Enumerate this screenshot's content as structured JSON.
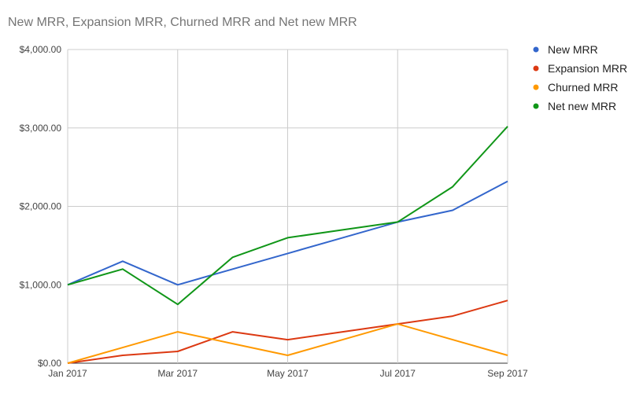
{
  "chart_data": {
    "type": "line",
    "title": "New MRR, Expansion MRR, Churned MRR and Net new MRR",
    "x": [
      "Jan 2017",
      "Feb 2017",
      "Mar 2017",
      "Apr 2017",
      "May 2017",
      "Jun 2017",
      "Jul 2017",
      "Aug 2017",
      "Sep 2017"
    ],
    "x_tick_labels": [
      "Jan 2017",
      "Mar 2017",
      "May 2017",
      "Jul 2017",
      "Sep 2017"
    ],
    "y_tick_labels": [
      "$0.00",
      "$1,000.00",
      "$2,000.00",
      "$3,000.00",
      "$4,000.00"
    ],
    "ylim": [
      0,
      4000
    ],
    "grid": true,
    "legend_position": "right",
    "series": [
      {
        "name": "New MRR",
        "color": "#3366cc",
        "values": [
          1000,
          1300,
          1000,
          1200,
          1400,
          1600,
          1800,
          1950,
          2320
        ]
      },
      {
        "name": "Expansion MRR",
        "color": "#dc3912",
        "values": [
          0,
          100,
          150,
          400,
          300,
          400,
          500,
          600,
          800
        ]
      },
      {
        "name": "Churned MRR",
        "color": "#ff9900",
        "values": [
          0,
          200,
          400,
          250,
          100,
          300,
          500,
          300,
          100
        ]
      },
      {
        "name": "Net new MRR",
        "color": "#109618",
        "values": [
          1000,
          1200,
          750,
          1350,
          1600,
          1700,
          1800,
          2250,
          3020
        ]
      }
    ]
  }
}
